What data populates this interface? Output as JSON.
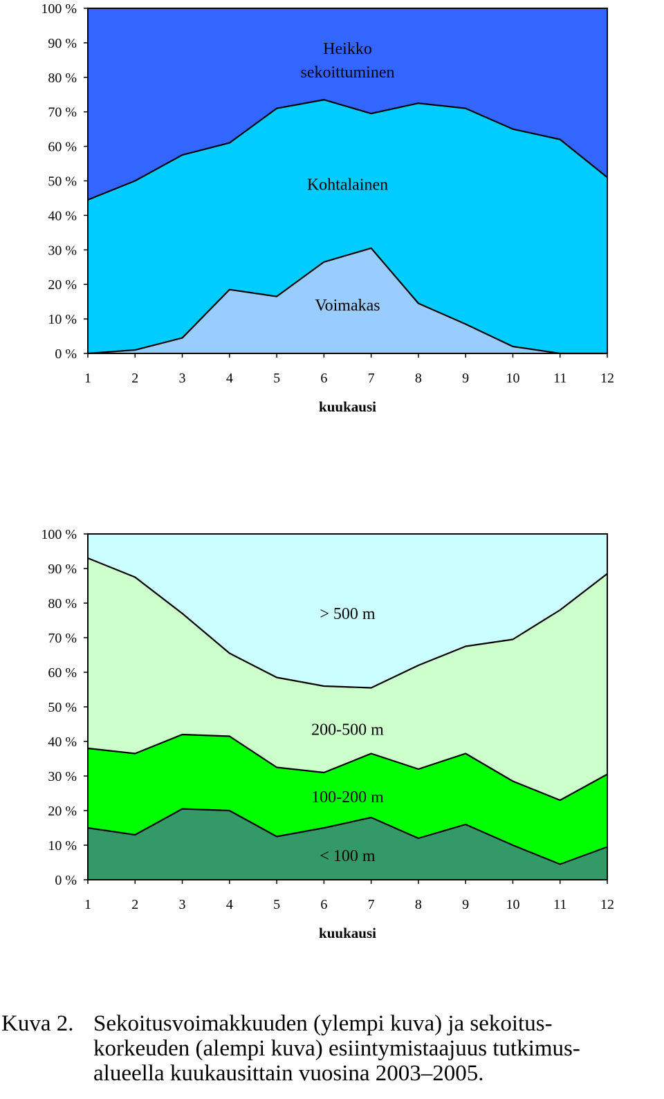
{
  "chart_data": [
    {
      "type": "area",
      "stacked": "percent",
      "x": [
        1,
        2,
        3,
        4,
        5,
        6,
        7,
        8,
        9,
        10,
        11,
        12
      ],
      "xlabel": "kuukausi",
      "ylabel": "",
      "ylim": [
        0,
        100
      ],
      "yticks": [
        "0 %",
        "10 %",
        "20 %",
        "30 %",
        "40 %",
        "50 %",
        "60 %",
        "70 %",
        "80 %",
        "90 %",
        "100 %"
      ],
      "grid": false,
      "series": [
        {
          "name": "Voimakas",
          "color": "#99ccff",
          "values": [
            0,
            1,
            4.5,
            18.5,
            16.5,
            26.5,
            30.5,
            14.5,
            8.5,
            2,
            0,
            0
          ]
        },
        {
          "name": "Kohtalainen",
          "color": "#00ccff",
          "values": [
            44.5,
            49,
            53,
            42.5,
            54.5,
            47,
            39,
            58,
            62.5,
            63,
            62,
            51
          ]
        },
        {
          "name": "Heikko sekoittuminen",
          "color": "#3366ff",
          "values": [
            55.5,
            50,
            42.5,
            39,
            29,
            26.5,
            30.5,
            27.5,
            29,
            35,
            38,
            49
          ]
        }
      ],
      "labels": [
        {
          "series": "Heikko sekoittuminen",
          "lines": [
            "Heikko",
            "sekoittuminen"
          ]
        },
        {
          "series": "Kohtalainen",
          "lines": [
            "Kohtalainen"
          ]
        },
        {
          "series": "Voimakas",
          "lines": [
            "Voimakas"
          ]
        }
      ]
    },
    {
      "type": "area",
      "stacked": "percent",
      "x": [
        1,
        2,
        3,
        4,
        5,
        6,
        7,
        8,
        9,
        10,
        11,
        12
      ],
      "xlabel": "kuukausi",
      "ylabel": "",
      "ylim": [
        0,
        100
      ],
      "yticks": [
        "0 %",
        "10 %",
        "20 %",
        "30 %",
        "40 %",
        "50 %",
        "60 %",
        "70 %",
        "80 %",
        "90 %",
        "100 %"
      ],
      "grid": false,
      "series": [
        {
          "name": "< 100 m",
          "color": "#339966",
          "values": [
            15,
            13,
            20.5,
            20,
            12.5,
            15,
            18,
            12,
            16,
            10,
            4.5,
            9.5
          ]
        },
        {
          "name": "100-200 m",
          "color": "#00ff00",
          "values": [
            23,
            23.5,
            21.5,
            21.5,
            20,
            16,
            18.5,
            20,
            20.5,
            18.5,
            18.5,
            21
          ]
        },
        {
          "name": "200-500 m",
          "color": "#ccffcc",
          "values": [
            55,
            51,
            35,
            24,
            26,
            25,
            19,
            30,
            31,
            41,
            55,
            58
          ]
        },
        {
          "name": "> 500 m",
          "color": "#ccffff",
          "values": [
            7,
            12.5,
            23,
            34.5,
            41.5,
            44,
            44.5,
            38,
            32.5,
            30.5,
            22,
            11.5
          ]
        }
      ],
      "labels": [
        {
          "series": "> 500 m",
          "lines": [
            "> 500 m"
          ]
        },
        {
          "series": "200-500 m",
          "lines": [
            "200-500 m"
          ]
        },
        {
          "series": "100-200 m",
          "lines": [
            "100-200 m"
          ]
        },
        {
          "series": "< 100 m",
          "lines": [
            "< 100 m"
          ]
        }
      ]
    }
  ],
  "caption": {
    "prefix": "Kuva 2.",
    "line1": "Sekoitusvoimakkuuden (ylempi kuva) ja sekoitus-",
    "line2": "korkeuden (alempi kuva) esiintymistaajuus tutkimus-",
    "line3": "alueella kuukausittain vuosina 2003–2005."
  }
}
